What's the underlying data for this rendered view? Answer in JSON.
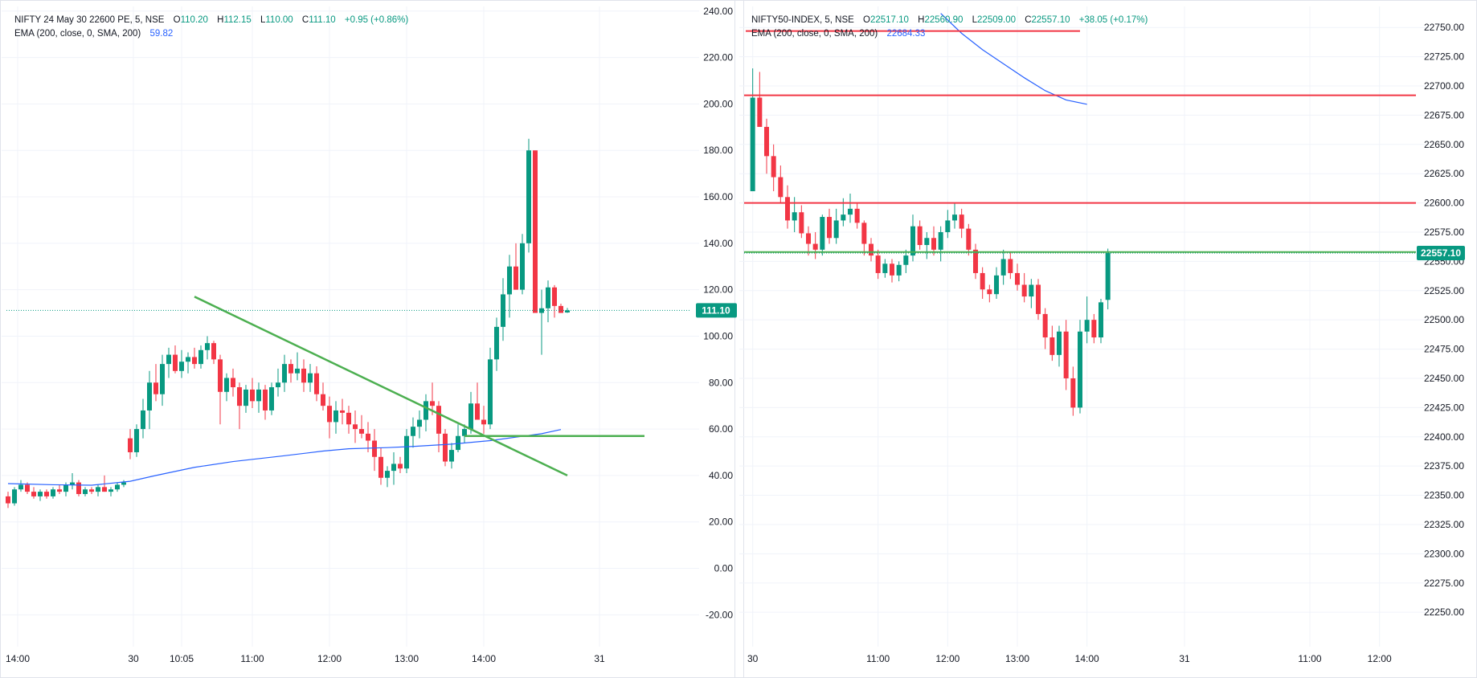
{
  "colors": {
    "up": "#089981",
    "down": "#f23645",
    "ema": "#2962ff",
    "trendGreen": "#4caf50",
    "levelRed": "#f23645",
    "grid": "#f0f3fa",
    "priceTag": "#089981"
  },
  "left_legend": {
    "line1": {
      "symbol": "NIFTY 24 May 30 22600 PE, 5, NSE",
      "o_label": "O",
      "o": "110.20",
      "h_label": "H",
      "h": "112.15",
      "l_label": "L",
      "l": "110.00",
      "c_label": "C",
      "c": "111.10",
      "change": "+0.95 (+0.86%)"
    },
    "line2": {
      "label": "EMA (200, close, 0, SMA, 200)",
      "value": "59.82"
    }
  },
  "right_legend": {
    "line1": {
      "symbol": "NIFTY50-INDEX, 5, NSE",
      "o_label": "O",
      "o": "22517.10",
      "h_label": "H",
      "h": "22560.90",
      "l_label": "L",
      "l": "22509.00",
      "c_label": "C",
      "c": "22557.10",
      "change": "+38.05 (+0.17%)"
    },
    "line2": {
      "label": "EMA (200, close, 0, SMA, 200)",
      "value": "22684.33"
    }
  },
  "left_price_tag": "111.10",
  "right_price_tag": "22557.10",
  "chart_data": [
    {
      "type": "candlestick",
      "title": "NIFTY 24 May 30 22600 PE, 5, NSE",
      "ylim": [
        -32,
        242
      ],
      "y_ticks": [
        "240.00",
        "220.00",
        "200.00",
        "180.00",
        "160.00",
        "140.00",
        "120.00",
        "100.00",
        "80.00",
        "60.00",
        "40.00",
        "20.00",
        "0.00",
        "-20.00"
      ],
      "y_tick_values": [
        240,
        220,
        200,
        180,
        160,
        140,
        120,
        100,
        80,
        60,
        40,
        20,
        0,
        -20
      ],
      "x_ticks": [
        {
          "label": "14:00",
          "idx": -11.5
        },
        {
          "label": "30",
          "idx": 6.5
        },
        {
          "label": "10:05",
          "idx": 14
        },
        {
          "label": "11:00",
          "idx": 25
        },
        {
          "label": "12:00",
          "idx": 37
        },
        {
          "label": "13:00",
          "idx": 49
        },
        {
          "label": "14:00",
          "idx": 61
        },
        {
          "label": "31",
          "idx": 79
        }
      ],
      "x_range": [
        -13,
        92
      ],
      "candles": [
        [
          31,
          33,
          26,
          28
        ],
        [
          28,
          35,
          27,
          34
        ],
        [
          34,
          38,
          33,
          36
        ],
        [
          36,
          37,
          32,
          33
        ],
        [
          33,
          35,
          30,
          31
        ],
        [
          31,
          34,
          29,
          33
        ],
        [
          33,
          34,
          30,
          31
        ],
        [
          31,
          35,
          30,
          34
        ],
        [
          34,
          36,
          32,
          33
        ],
        [
          33,
          37,
          31,
          36
        ],
        [
          36,
          41,
          34,
          37
        ],
        [
          37,
          38,
          31,
          32
        ],
        [
          32,
          35,
          31,
          34
        ],
        [
          34,
          35,
          32,
          33
        ],
        [
          33,
          36,
          31,
          35
        ],
        [
          35,
          40,
          33,
          33
        ],
        [
          33,
          35,
          31,
          34
        ],
        [
          34,
          37,
          33,
          36
        ],
        [
          36,
          38,
          35,
          37
        ],
        [
          56,
          60,
          47,
          50
        ],
        [
          50,
          62,
          48,
          60
        ],
        [
          60,
          73,
          56,
          68
        ],
        [
          68,
          85,
          60,
          80
        ],
        [
          80,
          88,
          72,
          75
        ],
        [
          75,
          92,
          70,
          88
        ],
        [
          88,
          95,
          82,
          92
        ],
        [
          92,
          96,
          84,
          85
        ],
        [
          85,
          94,
          82,
          89
        ],
        [
          89,
          93,
          84,
          91
        ],
        [
          91,
          95,
          86,
          88
        ],
        [
          88,
          96,
          86,
          94
        ],
        [
          94,
          100,
          90,
          97
        ],
        [
          97,
          98,
          88,
          90
        ],
        [
          90,
          92,
          62,
          76
        ],
        [
          76,
          84,
          72,
          82
        ],
        [
          82,
          86,
          74,
          78
        ],
        [
          78,
          80,
          60,
          70
        ],
        [
          70,
          79,
          67,
          77
        ],
        [
          77,
          82,
          69,
          72
        ],
        [
          72,
          80,
          67,
          77
        ],
        [
          77,
          79,
          64,
          68
        ],
        [
          68,
          80,
          66,
          78
        ],
        [
          78,
          86,
          74,
          80
        ],
        [
          80,
          92,
          76,
          88
        ],
        [
          88,
          90,
          80,
          84
        ],
        [
          84,
          93,
          81,
          86
        ],
        [
          86,
          90,
          76,
          80
        ],
        [
          80,
          88,
          76,
          84
        ],
        [
          84,
          87,
          72,
          75
        ],
        [
          75,
          80,
          68,
          70
        ],
        [
          70,
          74,
          56,
          63
        ],
        [
          63,
          72,
          58,
          68
        ],
        [
          68,
          73,
          62,
          67
        ],
        [
          67,
          70,
          58,
          62
        ],
        [
          62,
          68,
          54,
          60
        ],
        [
          60,
          66,
          56,
          58
        ],
        [
          58,
          63,
          50,
          55
        ],
        [
          55,
          60,
          42,
          48
        ],
        [
          48,
          52,
          36,
          39
        ],
        [
          39,
          44,
          35,
          42
        ],
        [
          42,
          50,
          36,
          45
        ],
        [
          45,
          48,
          41,
          43
        ],
        [
          43,
          60,
          41,
          57
        ],
        [
          57,
          65,
          52,
          61
        ],
        [
          61,
          68,
          56,
          64
        ],
        [
          64,
          75,
          59,
          72
        ],
        [
          72,
          80,
          66,
          70
        ],
        [
          70,
          72,
          50,
          58
        ],
        [
          58,
          60,
          44,
          46
        ],
        [
          46,
          54,
          43,
          51
        ],
        [
          51,
          62,
          50,
          57
        ],
        [
          57,
          62,
          54,
          60
        ],
        [
          60,
          76,
          58,
          71
        ],
        [
          71,
          80,
          66,
          64
        ],
        [
          64,
          70,
          58,
          62
        ],
        [
          62,
          95,
          60,
          90
        ],
        [
          90,
          108,
          85,
          104
        ],
        [
          104,
          125,
          98,
          118
        ],
        [
          118,
          135,
          108,
          130
        ],
        [
          130,
          140,
          120,
          120
        ],
        [
          120,
          144,
          118,
          140
        ],
        [
          140,
          185,
          136,
          180
        ],
        [
          180,
          180,
          110,
          110
        ],
        [
          110,
          120,
          92,
          112
        ],
        [
          112,
          124,
          106,
          121
        ],
        [
          121,
          122,
          108,
          113
        ],
        [
          113,
          114,
          110,
          110
        ],
        [
          110.2,
          112.15,
          110,
          111.1
        ]
      ],
      "ema": [
        [
          -13,
          36.5
        ],
        [
          -6,
          36
        ],
        [
          0,
          35.8
        ],
        [
          6,
          37.5
        ],
        [
          10,
          40
        ],
        [
          16,
          43.5
        ],
        [
          22,
          46
        ],
        [
          30,
          48.5
        ],
        [
          36,
          50.5
        ],
        [
          40,
          51.5
        ],
        [
          46,
          52
        ],
        [
          50,
          52.5
        ],
        [
          56,
          53.5
        ],
        [
          62,
          55
        ],
        [
          66,
          56.5
        ],
        [
          70,
          58
        ],
        [
          73,
          59.8
        ]
      ],
      "drawings": [
        {
          "kind": "trendline",
          "from": [
            16,
            117
          ],
          "to": [
            74,
            40
          ]
        },
        {
          "kind": "hline_segment",
          "from": [
            58,
            57
          ],
          "to": [
            86,
            57
          ]
        }
      ],
      "last_price": 111.1
    },
    {
      "type": "candlestick",
      "title": "NIFTY50-INDEX, 5, NSE",
      "ylim": [
        22224,
        22768
      ],
      "y_ticks": [
        "22750.00",
        "22725.00",
        "22700.00",
        "22675.00",
        "22650.00",
        "22625.00",
        "22600.00",
        "22575.00",
        "22550.00",
        "22525.00",
        "22500.00",
        "22475.00",
        "22450.00",
        "22425.00",
        "22400.00",
        "22375.00",
        "22350.00",
        "22325.00",
        "22300.00",
        "22275.00",
        "22250.00"
      ],
      "y_tick_values": [
        22750,
        22725,
        22700,
        22675,
        22650,
        22625,
        22600,
        22575,
        22550,
        22525,
        22500,
        22475,
        22450,
        22425,
        22400,
        22375,
        22350,
        22325,
        22300,
        22275,
        22250
      ],
      "x_ticks": [
        {
          "label": "30",
          "idx": 0
        },
        {
          "label": "11:00",
          "idx": 18
        },
        {
          "label": "12:00",
          "idx": 28
        },
        {
          "label": "13:00",
          "idx": 38
        },
        {
          "label": "14:00",
          "idx": 48
        },
        {
          "label": "31",
          "idx": 62
        },
        {
          "label": "11:00",
          "idx": 80
        },
        {
          "label": "12:00",
          "idx": 90
        }
      ],
      "x_range": [
        -1,
        95
      ],
      "candles": [
        [
          22610,
          22715,
          22610,
          22690
        ],
        [
          22690,
          22712,
          22665,
          22665
        ],
        [
          22665,
          22672,
          22625,
          22640
        ],
        [
          22640,
          22650,
          22610,
          22622
        ],
        [
          22622,
          22632,
          22600,
          22605
        ],
        [
          22605,
          22615,
          22578,
          22585
        ],
        [
          22585,
          22605,
          22575,
          22592
        ],
        [
          22592,
          22598,
          22570,
          22574
        ],
        [
          22574,
          22580,
          22555,
          22565
        ],
        [
          22565,
          22575,
          22552,
          22560
        ],
        [
          22560,
          22590,
          22555,
          22588
        ],
        [
          22588,
          22595,
          22565,
          22570
        ],
        [
          22570,
          22595,
          22565,
          22585
        ],
        [
          22585,
          22604,
          22580,
          22590
        ],
        [
          22590,
          22608,
          22583,
          22595
        ],
        [
          22595,
          22600,
          22578,
          22583
        ],
        [
          22583,
          22585,
          22555,
          22565
        ],
        [
          22565,
          22570,
          22550,
          22555
        ],
        [
          22555,
          22560,
          22535,
          22540
        ],
        [
          22540,
          22552,
          22536,
          22548
        ],
        [
          22548,
          22552,
          22532,
          22538
        ],
        [
          22538,
          22550,
          22533,
          22547
        ],
        [
          22547,
          22560,
          22540,
          22555
        ],
        [
          22555,
          22590,
          22550,
          22580
        ],
        [
          22580,
          22585,
          22560,
          22564
        ],
        [
          22564,
          22575,
          22552,
          22570
        ],
        [
          22570,
          22580,
          22555,
          22560
        ],
        [
          22560,
          22580,
          22550,
          22575
        ],
        [
          22575,
          22594,
          22570,
          22585
        ],
        [
          22585,
          22600,
          22578,
          22590
        ],
        [
          22590,
          22595,
          22570,
          22578
        ],
        [
          22578,
          22582,
          22555,
          22560
        ],
        [
          22560,
          22565,
          22535,
          22540
        ],
        [
          22540,
          22545,
          22518,
          22526
        ],
        [
          22526,
          22530,
          22515,
          22522
        ],
        [
          22522,
          22545,
          22518,
          22538
        ],
        [
          22538,
          22560,
          22530,
          22552
        ],
        [
          22552,
          22558,
          22535,
          22540
        ],
        [
          22540,
          22548,
          22525,
          22530
        ],
        [
          22530,
          22540,
          22515,
          22520
        ],
        [
          22520,
          22535,
          22510,
          22530
        ],
        [
          22530,
          22535,
          22500,
          22505
        ],
        [
          22505,
          22510,
          22475,
          22485
        ],
        [
          22485,
          22495,
          22465,
          22470
        ],
        [
          22470,
          22495,
          22460,
          22490
        ],
        [
          22490,
          22500,
          22440,
          22450
        ],
        [
          22450,
          22460,
          22418,
          22425
        ],
        [
          22425,
          22500,
          22420,
          22490
        ],
        [
          22490,
          22520,
          22480,
          22500
        ],
        [
          22500,
          22505,
          22480,
          22485
        ],
        [
          22485,
          22518,
          22480,
          22515
        ],
        [
          22517.1,
          22560.9,
          22509,
          22557.1
        ]
      ],
      "ema": [
        [
          27,
          22762
        ],
        [
          30,
          22745
        ],
        [
          33,
          22731
        ],
        [
          36,
          22719
        ],
        [
          39,
          22707
        ],
        [
          42,
          22696
        ],
        [
          45,
          22688
        ],
        [
          48,
          22684.33
        ]
      ],
      "drawings": [
        {
          "kind": "hline_segment",
          "color": "red",
          "from": [
            -1,
            22747
          ],
          "to": [
            47,
            22747
          ]
        },
        {
          "kind": "hline",
          "color": "red",
          "y": 22692
        },
        {
          "kind": "hline",
          "color": "red",
          "y": 22600
        },
        {
          "kind": "hline",
          "color": "green",
          "y": 22558
        }
      ],
      "last_price": 22557.1
    }
  ]
}
